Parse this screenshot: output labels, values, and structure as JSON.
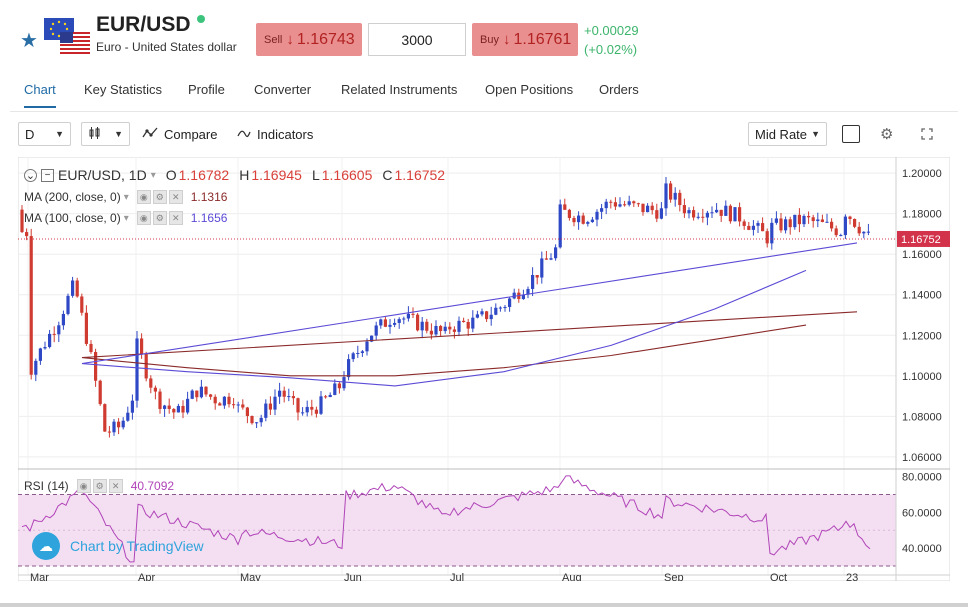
{
  "header": {
    "symbol": "EUR/USD",
    "name": "Euro - United States dollar",
    "sell_label": "Sell",
    "sell_price": "1.16743",
    "quantity": "3000",
    "buy_label": "Buy",
    "buy_price": "1.16761",
    "change": "+0.00029",
    "change_pct": "(+0.02%)"
  },
  "tabs": [
    "Chart",
    "Key Statistics",
    "Profile",
    "Converter",
    "Related Instruments",
    "Open Positions",
    "Orders"
  ],
  "toolbar": {
    "interval": "D",
    "compare": "Compare",
    "indicators": "Indicators",
    "rate_mode": "Mid Rate"
  },
  "legend": {
    "title": "EUR/USD, 1D",
    "o_label": "O",
    "o": "1.16782",
    "h_label": "H",
    "h": "1.16945",
    "l_label": "L",
    "l": "1.16605",
    "c_label": "C",
    "c": "1.16752",
    "ma200_label": "MA (200, close, 0)",
    "ma200": "1.1316",
    "ma100_label": "MA (100, close, 0)",
    "ma100": "1.1656",
    "rsi_label": "RSI (14)",
    "rsi": "40.7092"
  },
  "branding": "Chart by TradingView",
  "colors": {
    "up": "#2f49c6",
    "down": "#cf3b31",
    "ma200": "#8b2a2a",
    "ma100": "#5b4bd6",
    "rsi": "#b044b8",
    "accent": "#1f6aa5",
    "price_tag": "#d2334a"
  },
  "chart_data": {
    "type": "candlestick",
    "price_axis": {
      "range": [
        1.055,
        1.205
      ],
      "ticks": [
        "1.20000",
        "1.18000",
        "1.16000",
        "1.14000",
        "1.12000",
        "1.10000",
        "1.08000",
        "1.06000"
      ]
    },
    "last_price": "1.16752",
    "x_labels": [
      "Mar",
      "Apr",
      "May",
      "Jun",
      "Jul",
      "Aug",
      "Sep",
      "Oct",
      "23"
    ],
    "close_keypoints": [
      [
        "Mar",
        1.101
      ],
      [
        "Mar",
        1.115
      ],
      [
        "Mar",
        1.128
      ],
      [
        "Mar",
        1.145
      ],
      [
        "Mar",
        1.112
      ],
      [
        "Mar",
        1.072
      ],
      [
        "Mar",
        1.075
      ],
      [
        "Mar",
        1.094
      ],
      [
        "Apr",
        1.116
      ],
      [
        "Apr",
        1.089
      ],
      [
        "Apr",
        1.081
      ],
      [
        "Apr",
        1.093
      ],
      [
        "Apr",
        1.088
      ],
      [
        "Apr",
        1.09
      ],
      [
        "May",
        1.084
      ],
      [
        "May",
        1.078
      ],
      [
        "May",
        1.093
      ],
      [
        "May",
        1.081
      ],
      [
        "May",
        1.086
      ],
      [
        "May",
        1.096
      ],
      [
        "Jun",
        1.1
      ],
      [
        "Jun",
        1.12
      ],
      [
        "Jun",
        1.13
      ],
      [
        "Jun",
        1.125
      ],
      [
        "Jun",
        1.12
      ],
      [
        "Jul",
        1.124
      ],
      [
        "Jul",
        1.127
      ],
      [
        "Jul",
        1.135
      ],
      [
        "Jul",
        1.148
      ],
      [
        "Jul",
        1.165
      ],
      [
        "Aug",
        1.181
      ],
      [
        "Aug",
        1.178
      ],
      [
        "Aug",
        1.186
      ],
      [
        "Aug",
        1.183
      ],
      [
        "Aug",
        1.181
      ],
      [
        "Sep",
        1.193
      ],
      [
        "Sep",
        1.181
      ],
      [
        "Sep",
        1.183
      ],
      [
        "Sep",
        1.178
      ],
      [
        "Sep",
        1.168
      ],
      [
        "Oct",
        1.173
      ],
      [
        "Oct",
        1.177
      ],
      [
        "Oct",
        1.171
      ],
      [
        "23",
        1.182
      ],
      [
        "23",
        1.1675
      ]
    ],
    "ma200_keypoints": [
      [
        "Mar",
        1.109
      ],
      [
        "Apr",
        1.104
      ],
      [
        "May",
        1.1
      ],
      [
        "Jun",
        1.1
      ],
      [
        "Jul",
        1.104
      ],
      [
        "Aug",
        1.11
      ],
      [
        "Sep",
        1.118
      ],
      [
        "Oct",
        1.125
      ],
      [
        "23",
        1.1316
      ]
    ],
    "ma100_keypoints": [
      [
        "Mar",
        1.106
      ],
      [
        "Apr",
        1.102
      ],
      [
        "May",
        1.099
      ],
      [
        "Jun",
        1.095
      ],
      [
        "Jul",
        1.102
      ],
      [
        "Aug",
        1.115
      ],
      [
        "Sep",
        1.133
      ],
      [
        "Oct",
        1.152
      ],
      [
        "23",
        1.1656
      ]
    ],
    "rsi_axis": {
      "range": [
        25,
        82
      ],
      "ticks": [
        "80.0000",
        "60.0000",
        "40.0000"
      ],
      "band": [
        30,
        70
      ]
    },
    "rsi_keypoints": [
      [
        "Mar",
        51
      ],
      [
        "Mar",
        72
      ],
      [
        "Mar",
        30
      ],
      [
        "Apr",
        62
      ],
      [
        "Apr",
        45
      ],
      [
        "May",
        50
      ],
      [
        "May",
        42
      ],
      [
        "Jun",
        69
      ],
      [
        "Jun",
        75
      ],
      [
        "Jun",
        56
      ],
      [
        "Jul",
        60
      ],
      [
        "Jul",
        74
      ],
      [
        "Aug",
        80
      ],
      [
        "Aug",
        58
      ],
      [
        "Sep",
        67
      ],
      [
        "Sep",
        56
      ],
      [
        "Oct",
        37
      ],
      [
        "Oct",
        52
      ],
      [
        "23",
        58
      ],
      [
        "23",
        40.7
      ]
    ]
  }
}
